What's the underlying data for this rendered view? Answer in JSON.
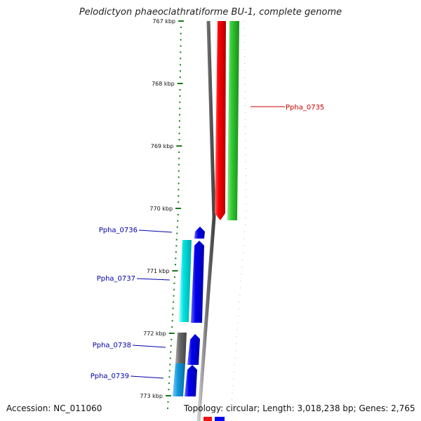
{
  "title": "Pelodictyon phaeoclathratiforme BU-1, complete genome",
  "footer": {
    "accession": "Accession: NC_011060",
    "stats": "Topology: circular; Length: 3,018,238 bp; Genes: 2,765"
  },
  "ruler": {
    "ticks": [
      "767 kbp",
      "768 kbp",
      "769 kbp",
      "770 kbp",
      "771 kbp",
      "772 kbp",
      "773 kbp"
    ]
  },
  "genes": [
    {
      "label": "Ppha_0735",
      "color": "#cc0000"
    },
    {
      "label": "Ppha_0736",
      "color": "#0000aa"
    },
    {
      "label": "Ppha_0737",
      "color": "#0000aa"
    },
    {
      "label": "Ppha_0738",
      "color": "#0000aa"
    },
    {
      "label": "Ppha_0739",
      "color": "#0000aa"
    }
  ],
  "colors": {
    "ruler": "#1a7a1a",
    "backbone": "#777777",
    "gene_red": "#ee1111",
    "gene_green": "#33bb33",
    "gene_blue": "#0000ee",
    "gene_cyan": "#00dddd",
    "gene_gray": "#666666",
    "gene_lightblue": "#1199dd"
  }
}
